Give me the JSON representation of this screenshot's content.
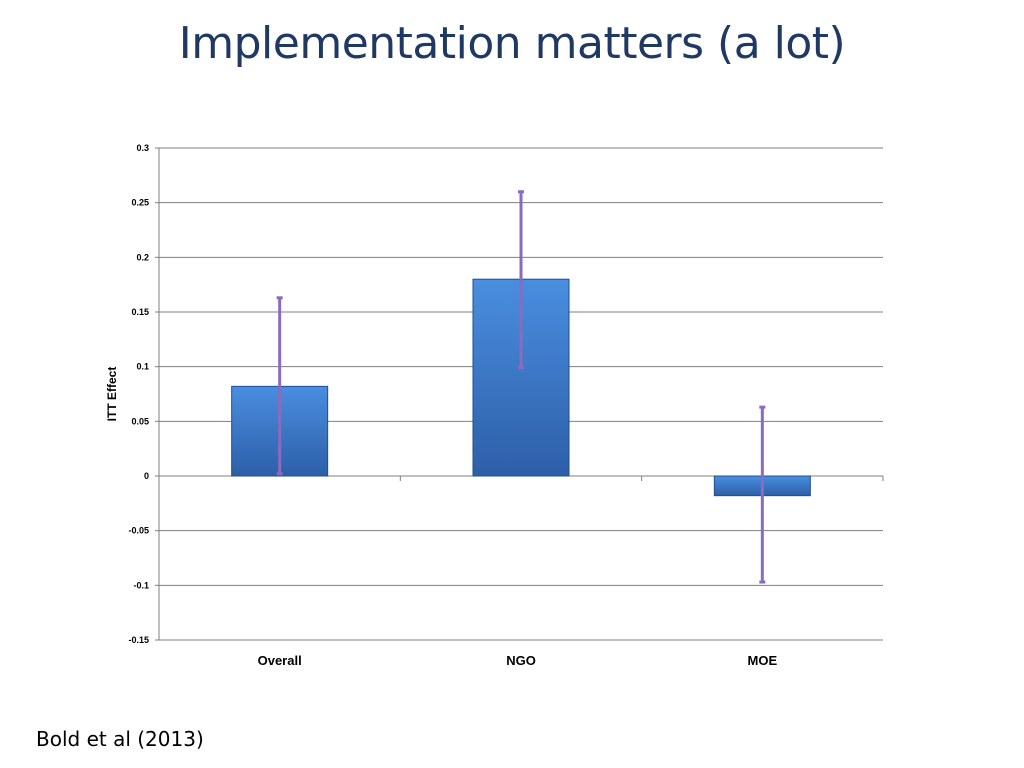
{
  "slide": {
    "title": "Implementation matters (a lot)",
    "citation": "Bold et al (2013)"
  },
  "chart_data": {
    "type": "bar",
    "title": "",
    "xlabel": "",
    "ylabel": "ITT Effect",
    "categories": [
      "Overall",
      "NGO",
      "MOE"
    ],
    "series": [
      {
        "values": [
          0.082,
          0.18,
          -0.018
        ],
        "error_low": [
          0.002,
          0.099,
          -0.097
        ],
        "error_high": [
          0.163,
          0.26,
          0.063
        ]
      }
    ],
    "ylim": [
      -0.15,
      0.3
    ],
    "yticks": [
      -0.15,
      -0.1,
      -0.05,
      0,
      0.05,
      0.1,
      0.15,
      0.2,
      0.25,
      0.3
    ],
    "ytick_labels": [
      "-0.15",
      "-0.1",
      "-0.05",
      "0",
      "0.05",
      "0.1",
      "0.15",
      "0.2",
      "0.25",
      "0.3"
    ],
    "grid": true,
    "legend": "none",
    "colors": {
      "bar_top": "#4a8ee0",
      "bar_bottom": "#2d5fa8",
      "bar_edge": "#1f4f8f",
      "error_bar": "#8a6bbf",
      "grid": "#7f7f7f"
    }
  }
}
